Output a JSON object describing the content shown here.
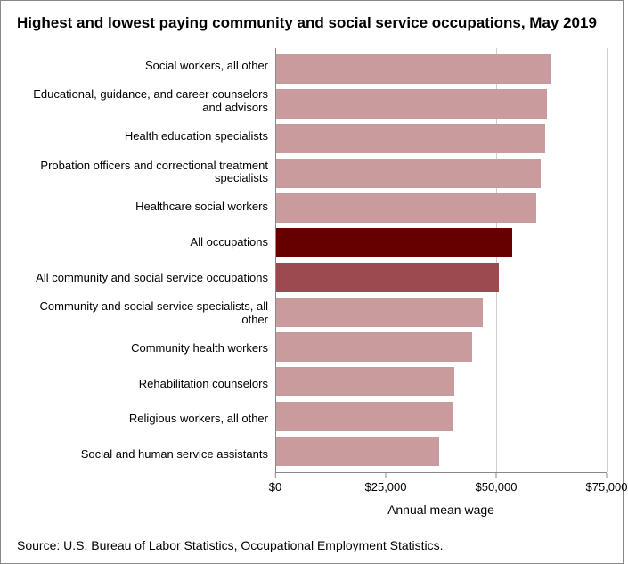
{
  "chart": {
    "type": "bar-horizontal",
    "title": "Highest and lowest paying community and social service occupations, May 2019",
    "x_axis_label": "Annual mean wage",
    "x_min": 0,
    "x_max": 75000,
    "x_ticks": [
      {
        "value": 0,
        "label": "$0"
      },
      {
        "value": 25000,
        "label": "$25,000"
      },
      {
        "value": 50000,
        "label": "$50,000"
      },
      {
        "value": 75000,
        "label": "$75,000"
      }
    ],
    "grid_color": "#cfcfcf",
    "axis_color": "#888888",
    "background_color": "#ffffff",
    "title_fontsize": 17,
    "label_fontsize": 13,
    "axis_title_fontsize": 14,
    "bars": [
      {
        "label": "Social workers, all other",
        "value": 62500,
        "color": "#c99b9d"
      },
      {
        "label": "Educational, guidance, and career counselors and advisors",
        "value": 61500,
        "color": "#c99b9d"
      },
      {
        "label": "Health education specialists",
        "value": 61000,
        "color": "#c99b9d"
      },
      {
        "label": "Probation officers and correctional treatment specialists",
        "value": 60000,
        "color": "#c99b9d"
      },
      {
        "label": "Healthcare social workers",
        "value": 59000,
        "color": "#c99b9d"
      },
      {
        "label": "All occupations",
        "value": 53500,
        "color": "#660000"
      },
      {
        "label": "All community and social service occupations",
        "value": 50500,
        "color": "#9b4b50"
      },
      {
        "label": "Community and social service specialists, all other",
        "value": 47000,
        "color": "#c99b9d"
      },
      {
        "label": "Community health workers",
        "value": 44500,
        "color": "#c99b9d"
      },
      {
        "label": "Rehabilitation counselors",
        "value": 40500,
        "color": "#c99b9d"
      },
      {
        "label": "Religious workers, all other",
        "value": 40000,
        "color": "#c99b9d"
      },
      {
        "label": "Social and human service assistants",
        "value": 37000,
        "color": "#c99b9d"
      }
    ],
    "source": "Source: U.S. Bureau of Labor Statistics, Occupational Employment Statistics."
  }
}
